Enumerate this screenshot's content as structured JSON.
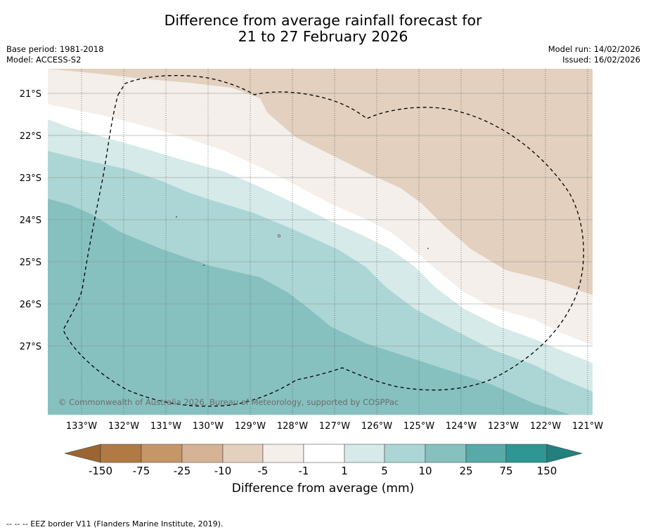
{
  "title": {
    "line1": "Difference from average rainfall forecast for",
    "line2": "21 to 27 February 2026"
  },
  "meta": {
    "base_period": "Base period: 1981-2018",
    "model": "Model: ACCESS-S2",
    "model_run": "Model run: 14/02/2026",
    "issued": "Issued: 16/02/2026"
  },
  "map": {
    "copyright": "© Commonwealth of Australia 2026, Bureau of Meteorology, supported by COSPPac",
    "latitude_labels": [
      "21°S",
      "22°S",
      "23°S",
      "24°S",
      "25°S",
      "26°S",
      "27°S"
    ],
    "longitude_labels": [
      "133°W",
      "132°W",
      "131°W",
      "130°W",
      "129°W",
      "128°W",
      "127°W",
      "126°W",
      "125°W",
      "124°W",
      "123°W",
      "122°W",
      "121°W"
    ],
    "category_colors": {
      "minus_5_to_minus_1": "#e3d0be",
      "minus_1_to_1": "#f4efea",
      "near_zero": "#ffffff",
      "1_to_5": "#d5eae9",
      "5_to_10": "#acd6d5",
      "10_to_25": "#86c1c0"
    }
  },
  "colorbar": {
    "title": "Difference from average (mm)",
    "tick_labels": [
      "-150",
      "-75",
      "-25",
      "-10",
      "-5",
      "-1",
      "1",
      "5",
      "10",
      "25",
      "75",
      "150"
    ],
    "colors": [
      "#9b6531",
      "#b07a45",
      "#c49668",
      "#d5b394",
      "#e3d0be",
      "#f4efea",
      "#ffffff",
      "#d5eae9",
      "#acd6d5",
      "#86c1c0",
      "#58a9a7",
      "#2f9694",
      "#23807e"
    ]
  },
  "footer": {
    "eez_legend": "--  --  -- EEZ border V11 (Flanders Marine Institute, 2019)."
  }
}
